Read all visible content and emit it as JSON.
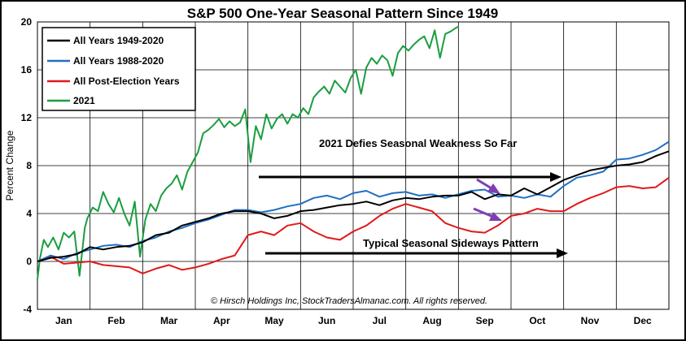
{
  "chart_data": {
    "type": "line",
    "title": "S&P 500 One-Year Seasonal Pattern Since 1949",
    "xlabel": "",
    "ylabel": "Percent Change",
    "ylim": [
      -4,
      20
    ],
    "yticks": [
      -4,
      0,
      4,
      8,
      12,
      16,
      20
    ],
    "x_range": [
      0,
      12
    ],
    "months": [
      "Jan",
      "Feb",
      "Mar",
      "Apr",
      "May",
      "Jun",
      "Jul",
      "Aug",
      "Sep",
      "Oct",
      "Nov",
      "Dec"
    ],
    "grid": true,
    "legend_position": "top-left",
    "series": [
      {
        "name": "All Years 1949-2020",
        "color": "#000000",
        "x": [
          0,
          0.25,
          0.5,
          0.75,
          1,
          1.25,
          1.5,
          1.75,
          2,
          2.25,
          2.5,
          2.75,
          3,
          3.25,
          3.5,
          3.75,
          4,
          4.25,
          4.5,
          4.75,
          5,
          5.25,
          5.5,
          5.75,
          6,
          6.25,
          6.5,
          6.75,
          7,
          7.25,
          7.5,
          7.75,
          8,
          8.25,
          8.5,
          8.75,
          9,
          9.25,
          9.5,
          9.75,
          10,
          10.25,
          10.5,
          10.75,
          11,
          11.25,
          11.5,
          11.75,
          12
        ],
        "values": [
          0,
          0.3,
          0.4,
          0.6,
          1.2,
          1.0,
          1.2,
          1.3,
          1.6,
          2.2,
          2.4,
          3.0,
          3.3,
          3.6,
          4.0,
          4.2,
          4.2,
          4.0,
          3.6,
          3.8,
          4.2,
          4.3,
          4.5,
          4.7,
          4.8,
          5.0,
          4.7,
          5.1,
          5.3,
          5.2,
          5.4,
          5.5,
          5.5,
          5.8,
          5.2,
          5.6,
          5.5,
          6.1,
          5.6,
          6.2,
          6.8,
          7.2,
          7.6,
          7.8,
          8.0,
          8.1,
          8.3,
          8.8,
          9.2
        ]
      },
      {
        "name": "All Years 1988-2020",
        "color": "#1f6fc5",
        "x": [
          0,
          0.25,
          0.5,
          0.75,
          1,
          1.25,
          1.5,
          1.75,
          2,
          2.25,
          2.5,
          2.75,
          3,
          3.25,
          3.5,
          3.75,
          4,
          4.25,
          4.5,
          4.75,
          5,
          5.25,
          5.5,
          5.75,
          6,
          6.25,
          6.5,
          6.75,
          7,
          7.25,
          7.5,
          7.75,
          8,
          8.25,
          8.5,
          8.75,
          9,
          9.25,
          9.5,
          9.75,
          10,
          10.25,
          10.5,
          10.75,
          11,
          11.25,
          11.5,
          11.75,
          12
        ],
        "values": [
          0,
          0.5,
          0.2,
          0.7,
          1.0,
          1.3,
          1.4,
          1.2,
          1.7,
          2.0,
          2.5,
          2.8,
          3.2,
          3.5,
          3.9,
          4.3,
          4.3,
          4.1,
          4.3,
          4.6,
          4.8,
          5.3,
          5.5,
          5.2,
          5.7,
          5.9,
          5.4,
          5.7,
          5.8,
          5.5,
          5.6,
          5.3,
          5.6,
          5.9,
          6.0,
          5.4,
          5.5,
          5.3,
          5.6,
          5.4,
          6.3,
          7.0,
          7.2,
          7.5,
          8.5,
          8.6,
          8.9,
          9.3,
          10.0
        ]
      },
      {
        "name": "All Post-Election Years",
        "color": "#e0191a",
        "x": [
          0,
          0.25,
          0.5,
          0.75,
          1,
          1.25,
          1.5,
          1.75,
          2,
          2.25,
          2.5,
          2.75,
          3,
          3.25,
          3.5,
          3.75,
          4,
          4.25,
          4.5,
          4.75,
          5,
          5.25,
          5.5,
          5.75,
          6,
          6.25,
          6.5,
          6.75,
          7,
          7.25,
          7.5,
          7.75,
          8,
          8.25,
          8.5,
          8.75,
          9,
          9.25,
          9.5,
          9.75,
          10,
          10.25,
          10.5,
          10.75,
          11,
          11.25,
          11.5,
          11.75,
          12
        ],
        "values": [
          0,
          0.4,
          -0.2,
          -0.1,
          0,
          -0.3,
          -0.4,
          -0.5,
          -1.0,
          -0.6,
          -0.3,
          -0.7,
          -0.5,
          -0.2,
          0.2,
          0.5,
          2.2,
          2.5,
          2.2,
          3.0,
          3.2,
          2.5,
          2.0,
          1.8,
          2.5,
          3.0,
          3.8,
          4.4,
          4.8,
          4.5,
          4.2,
          3.2,
          2.8,
          2.5,
          2.4,
          3.0,
          3.8,
          4.0,
          4.4,
          4.2,
          4.2,
          4.8,
          5.3,
          5.7,
          6.2,
          6.3,
          6.1,
          6.2,
          7.0
        ]
      },
      {
        "name": "2021",
        "color": "#1a9e3f",
        "x": [
          0,
          0.05,
          0.12,
          0.2,
          0.3,
          0.4,
          0.5,
          0.6,
          0.7,
          0.8,
          0.9,
          0.95,
          1.05,
          1.15,
          1.25,
          1.35,
          1.45,
          1.55,
          1.65,
          1.75,
          1.85,
          1.95,
          2.05,
          2.15,
          2.25,
          2.35,
          2.45,
          2.55,
          2.65,
          2.75,
          2.85,
          2.95,
          3.05,
          3.15,
          3.25,
          3.35,
          3.45,
          3.55,
          3.65,
          3.75,
          3.85,
          3.95,
          4.05,
          4.15,
          4.25,
          4.35,
          4.45,
          4.55,
          4.65,
          4.75,
          4.85,
          4.95,
          5.05,
          5.15,
          5.25,
          5.35,
          5.45,
          5.55,
          5.65,
          5.75,
          5.85,
          5.95,
          6.05,
          6.15,
          6.25,
          6.35,
          6.45,
          6.55,
          6.65,
          6.75,
          6.85,
          6.95,
          7.05,
          7.15,
          7.25,
          7.35,
          7.45,
          7.55,
          7.65,
          7.75,
          7.85,
          7.95,
          8.0
        ],
        "values": [
          -1.5,
          0.3,
          1.8,
          1.2,
          2.0,
          1.0,
          2.4,
          2.0,
          2.5,
          -1.2,
          2.8,
          3.6,
          4.5,
          4.2,
          5.8,
          4.8,
          4.1,
          5.3,
          4.0,
          3.0,
          5.0,
          0.4,
          3.5,
          4.8,
          4.2,
          5.5,
          6.1,
          6.5,
          7.2,
          6.0,
          7.5,
          8.3,
          9.1,
          10.7,
          11.0,
          11.4,
          11.9,
          11.2,
          11.7,
          11.3,
          11.6,
          12.7,
          8.3,
          11.3,
          10.2,
          12.3,
          11.1,
          11.9,
          12.3,
          11.5,
          12.3,
          12.0,
          12.8,
          12.3,
          13.7,
          14.2,
          14.6,
          14.0,
          15.1,
          14.6,
          14.1,
          15.3,
          16.0,
          14.0,
          16.2,
          17.0,
          16.5,
          17.2,
          16.8,
          15.5,
          17.4,
          18.0,
          17.6,
          18.1,
          18.5,
          18.8,
          17.8,
          19.3,
          17.0,
          19.0,
          19.2,
          19.5,
          19.6
        ]
      }
    ],
    "annotations": [
      "2021 Defies Seasonal Weakness So Far",
      "Typical Seasonal Sideways Pattern"
    ],
    "footer": "© Hirsch Holdings Inc, StockTradersAlmanac.com. All rights reserved.",
    "colors": {
      "arrow_purple": "#7e3fb5",
      "arrow_black": "#000000"
    }
  }
}
